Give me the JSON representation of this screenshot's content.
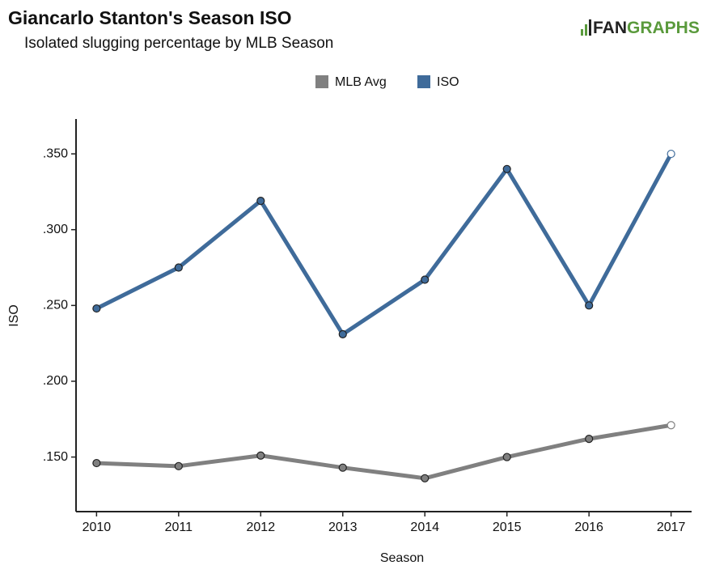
{
  "chart_data": {
    "type": "line",
    "title": "Giancarlo Stanton's Season ISO",
    "subtitle": "Isolated slugging percentage by MLB Season",
    "logo": [
      "FAN",
      "GRAPHS"
    ],
    "x_label": "Season",
    "y_label": "ISO",
    "x": [
      2010,
      2011,
      2012,
      2013,
      2014,
      2015,
      2016,
      2017
    ],
    "series": [
      {
        "name": "MLB Avg",
        "color": "#808080",
        "values": [
          0.146,
          0.144,
          0.151,
          0.143,
          0.136,
          0.15,
          0.162,
          0.171
        ]
      },
      {
        "name": "ISO",
        "color": "#3f6b9a",
        "values": [
          0.248,
          0.275,
          0.319,
          0.231,
          0.267,
          0.34,
          0.25,
          0.35
        ]
      }
    ],
    "xlim": [
      2009.75,
      2017.25
    ],
    "xticks": [
      2010,
      2011,
      2012,
      2013,
      2014,
      2015,
      2016,
      2017
    ],
    "ylim": [
      0.114,
      0.373
    ],
    "yticks": [
      {
        "value": 0.15,
        "label": ".150"
      },
      {
        "value": 0.2,
        "label": ".200"
      },
      {
        "value": 0.25,
        "label": ".250"
      },
      {
        "value": 0.3,
        "label": ".300"
      },
      {
        "value": 0.35,
        "label": ".350"
      }
    ],
    "legend": "top",
    "open_last_point": true
  }
}
